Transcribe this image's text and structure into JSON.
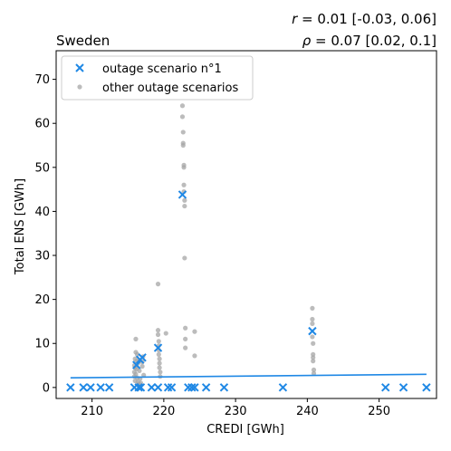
{
  "chart_data": {
    "type": "scatter",
    "title": "Sweden",
    "stats": {
      "r_symbol": "r",
      "r_text": " = 0.01 [-0.03, 0.06]",
      "rho_symbol": "ρ",
      "rho_text": " = 0.07 [0.02, 0.1]"
    },
    "xlabel": "CREDI [GWh]",
    "ylabel": "Total ENS [GWh]",
    "xlim": [
      205,
      258
    ],
    "ylim": [
      -2.5,
      76.5
    ],
    "xticks": [
      210,
      220,
      230,
      240,
      250
    ],
    "yticks": [
      0,
      10,
      20,
      30,
      40,
      50,
      60,
      70
    ],
    "legend_position": "upper-left",
    "colors": {
      "scenario": "#1f88e5",
      "other": "#a6a6a6",
      "fit": "#1f88e5"
    },
    "series": [
      {
        "name": "outage scenario n°1",
        "marker": "x",
        "x": [
          207.0,
          208.8,
          209.8,
          211.2,
          212.4,
          215.9,
          216.2,
          216.5,
          216.7,
          217.0,
          216.8,
          218.3,
          219.2,
          219.2,
          220.6,
          221.1,
          222.6,
          223.4,
          223.9,
          224.3,
          225.9,
          228.4,
          236.6,
          240.7,
          250.9,
          253.4,
          256.6
        ],
        "y": [
          0,
          0,
          0,
          0,
          0,
          0,
          5.1,
          0,
          6.3,
          6.8,
          0,
          0,
          9.0,
          0,
          0,
          0,
          43.8,
          0,
          0,
          0,
          0,
          0,
          0,
          12.8,
          0,
          0,
          0
        ]
      },
      {
        "name": "other outage scenarios",
        "marker": "o",
        "x": [
          215.9,
          215.9,
          215.9,
          216.0,
          216.0,
          216.0,
          216.1,
          216.1,
          216.1,
          216.2,
          216.2,
          216.3,
          216.3,
          216.4,
          216.4,
          216.5,
          216.6,
          216.6,
          216.7,
          216.8,
          217.0,
          217.0,
          217.1,
          217.2,
          219.2,
          219.2,
          219.2,
          219.3,
          219.3,
          219.3,
          219.3,
          219.4,
          219.4,
          219.4,
          219.5,
          219.5,
          220.3,
          222.6,
          222.6,
          222.7,
          222.7,
          222.7,
          222.8,
          222.8,
          222.8,
          222.8,
          222.9,
          222.9,
          222.9,
          223.0,
          223.0,
          223.0,
          224.3,
          224.3,
          240.7,
          240.7,
          240.7,
          240.7,
          240.8,
          240.8,
          240.8,
          240.8,
          240.9,
          240.9
        ],
        "y": [
          2.5,
          3.5,
          5.0,
          1.5,
          4.5,
          6.5,
          8.0,
          11.0,
          3.0,
          6.0,
          4.2,
          2.2,
          7.5,
          1.2,
          5.5,
          0.8,
          3.8,
          6.2,
          2.0,
          1.0,
          4.8,
          5.8,
          7.0,
          2.8,
          23.5,
          13.0,
          12.0,
          10.5,
          9.5,
          8.5,
          7.5,
          6.5,
          5.5,
          4.5,
          3.5,
          2.5,
          12.3,
          64.0,
          61.5,
          58.0,
          55.5,
          55.0,
          50.5,
          50.0,
          46.0,
          44.5,
          42.5,
          41.2,
          29.4,
          13.5,
          11.0,
          9.0,
          12.7,
          7.2,
          18.0,
          15.5,
          14.5,
          11.5,
          10.0,
          7.5,
          6.8,
          6.0,
          4.0,
          3.2
        ]
      },
      {
        "name": "",
        "marker": "line",
        "x": [
          207.0,
          256.6
        ],
        "y": [
          2.2,
          3.0
        ]
      }
    ]
  }
}
